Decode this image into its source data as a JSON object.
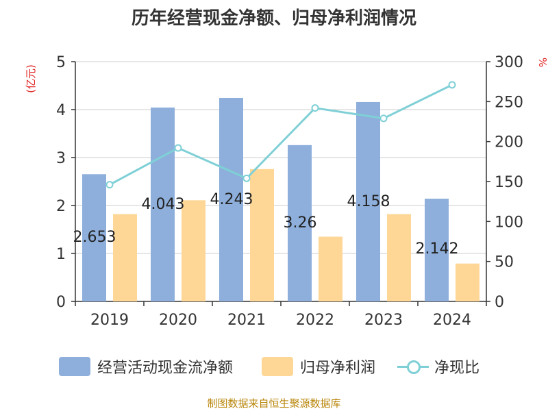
{
  "title": "历年经营现金净额、归母净利润情况",
  "source": "制图数据来自恒生聚源数据库",
  "colors": {
    "cash": "#8eafdb",
    "profit": "#fed797",
    "ratio": "#7fd0d6",
    "unit": "#e02020"
  },
  "chart_data": {
    "type": "bar",
    "categories": [
      "2019",
      "2020",
      "2021",
      "2022",
      "2023",
      "2024"
    ],
    "left_axis": {
      "label": "(亿元)",
      "ylim": [
        0,
        5
      ],
      "ticks": [
        "0",
        "1",
        "2",
        "3",
        "4",
        "5"
      ]
    },
    "right_axis": {
      "label": "%",
      "ylim": [
        0,
        300
      ],
      "ticks": [
        "0",
        "50",
        "100",
        "150",
        "200",
        "250",
        "300"
      ]
    },
    "series": [
      {
        "name": "经营活动现金流净额",
        "type": "bar",
        "axis": "left",
        "values": [
          2.653,
          4.043,
          4.243,
          3.26,
          4.158,
          2.142
        ],
        "labels": [
          "2.653",
          "4.043",
          "4.243",
          "3.26",
          "4.158",
          "2.142"
        ]
      },
      {
        "name": "归母净利润",
        "type": "bar",
        "axis": "left",
        "values": [
          1.82,
          2.11,
          2.76,
          1.35,
          1.82,
          0.79
        ]
      },
      {
        "name": "净现比",
        "type": "line",
        "axis": "right",
        "values": [
          146,
          192,
          154,
          242,
          229,
          271
        ]
      }
    ],
    "grid": true,
    "legend": "bottom"
  }
}
